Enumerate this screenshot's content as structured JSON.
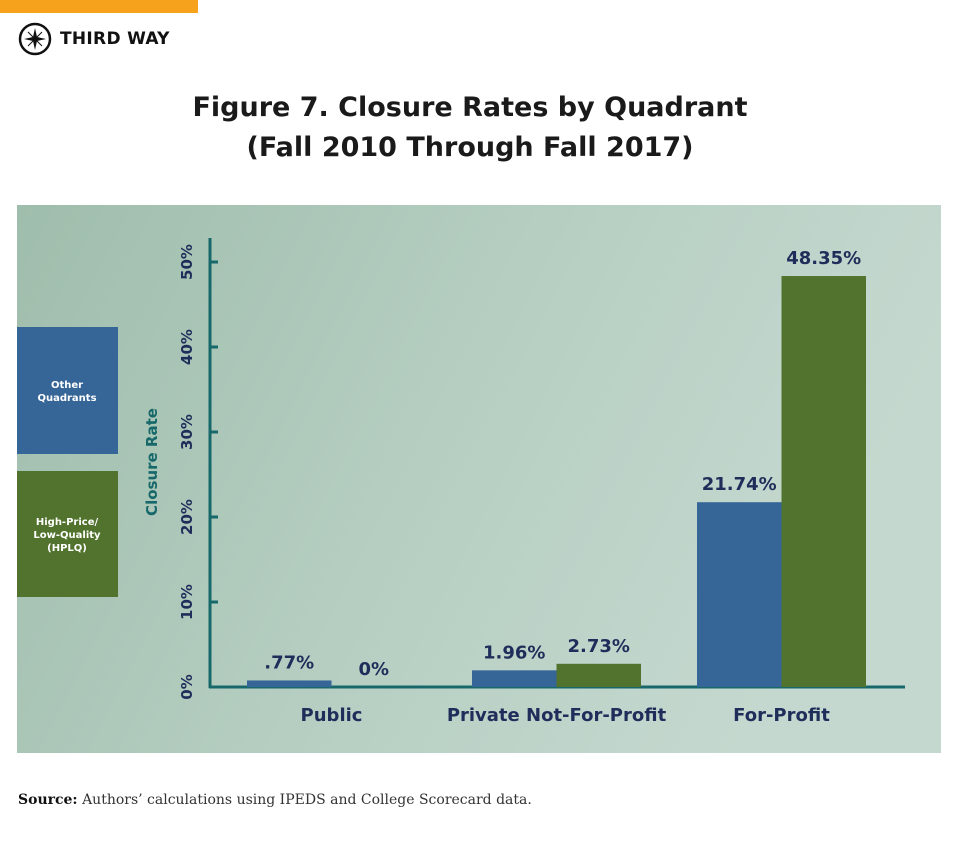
{
  "brand": {
    "name": "THIRD WAY",
    "accent": "#f7a21c"
  },
  "title_line1": "Figure 7. Closure Rates by Quadrant",
  "title_line2": "(Fall 2010 Through Fall 2017)",
  "source": {
    "label": "Source:",
    "text": "Authors’ calculations using IPEDS and College Scorecard data."
  },
  "chart_data": {
    "type": "bar",
    "title": "Figure 7. Closure Rates by Quadrant (Fall 2010 Through Fall 2017)",
    "categories": [
      "Public",
      "Private Not-For-Profit",
      "For-Profit"
    ],
    "series": [
      {
        "name": "Other Quadrants",
        "color": "#366597",
        "values": [
          0.77,
          1.96,
          21.74
        ],
        "labels": [
          ".77%",
          "1.96%",
          "21.74%"
        ]
      },
      {
        "name": "High-Price/ Low-Quality (HPLQ)",
        "color": "#52732e",
        "values": [
          0,
          2.73,
          48.35
        ],
        "labels": [
          "0%",
          "2.73%",
          "48.35%"
        ]
      }
    ],
    "ylabel": "Closure Rate",
    "ylim": [
      0,
      50
    ],
    "yticks": [
      "0%",
      "10%",
      "20%",
      "30%",
      "40%",
      "50%"
    ],
    "legend_placement": "left",
    "grid": false
  }
}
